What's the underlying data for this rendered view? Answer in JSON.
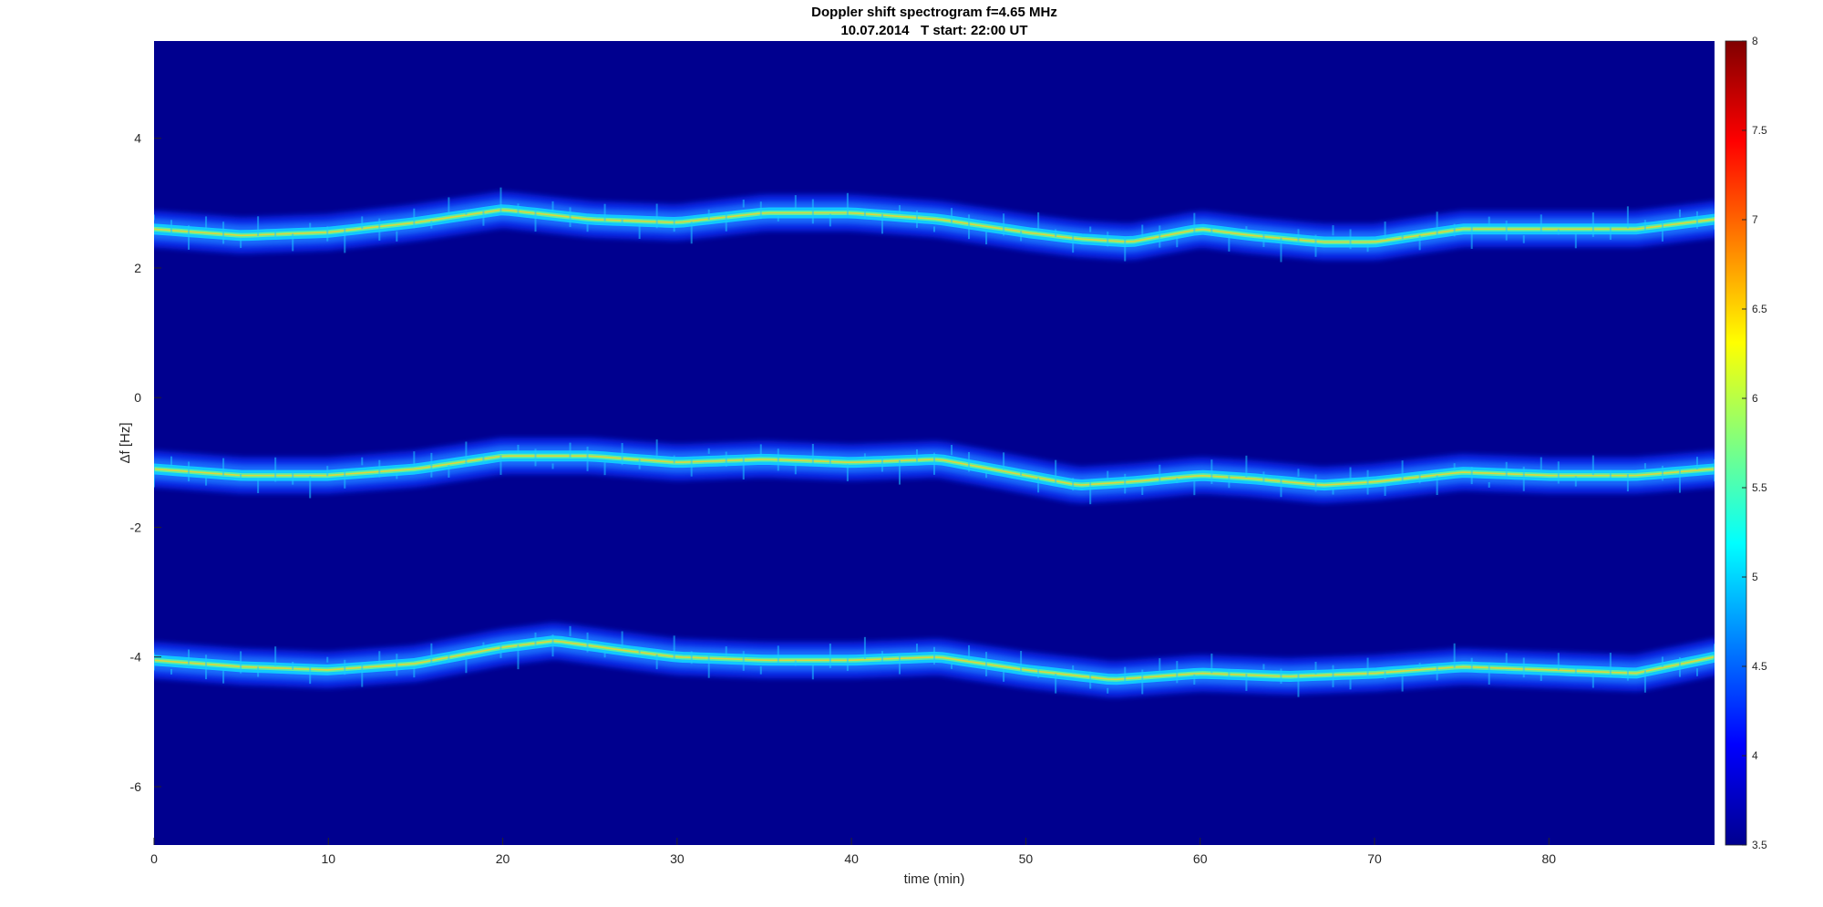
{
  "chart_data": {
    "type": "heatmap",
    "title": "Doppler shift spectrogram f=4.65 MHz",
    "subtitle": "10.07.2014   T start: 22:00 UT",
    "xlabel": "time (min)",
    "ylabel": "Δf [Hz]",
    "xlim": [
      0,
      89.5
    ],
    "ylim": [
      -6.9,
      5.5
    ],
    "x_ticks": [
      0,
      10,
      20,
      30,
      40,
      50,
      60,
      70,
      80
    ],
    "y_ticks": [
      4,
      2,
      0,
      -2,
      -4,
      -6
    ],
    "colorbar": {
      "colormap": "jet",
      "range": [
        3.5,
        8
      ],
      "ticks": [
        "3.5",
        "4",
        "4.5",
        "5",
        "5.5",
        "6",
        "6.5",
        "7",
        "7.5",
        "8"
      ],
      "background": "#00008f"
    },
    "grid": false,
    "legend": "none",
    "series": [
      {
        "x": [
          0,
          5,
          10,
          15,
          20,
          25,
          30,
          35,
          40,
          45,
          50,
          53,
          56,
          60,
          63,
          67,
          70,
          75,
          80,
          85,
          89.5
        ],
        "y": [
          2.6,
          2.5,
          2.55,
          2.7,
          2.9,
          2.75,
          2.7,
          2.85,
          2.85,
          2.75,
          2.55,
          2.45,
          2.4,
          2.6,
          2.5,
          2.4,
          2.4,
          2.6,
          2.6,
          2.6,
          2.75
        ]
      },
      {
        "x": [
          0,
          5,
          10,
          15,
          20,
          25,
          30,
          35,
          40,
          45,
          50,
          53,
          56,
          60,
          63,
          67,
          70,
          75,
          80,
          85,
          89.5
        ],
        "y": [
          -1.1,
          -1.2,
          -1.2,
          -1.1,
          -0.9,
          -0.9,
          -1.0,
          -0.95,
          -1.0,
          -0.95,
          -1.2,
          -1.35,
          -1.3,
          -1.2,
          -1.25,
          -1.35,
          -1.3,
          -1.15,
          -1.2,
          -1.2,
          -1.1
        ]
      },
      {
        "x": [
          0,
          5,
          10,
          15,
          20,
          23,
          27,
          30,
          35,
          40,
          45,
          50,
          55,
          60,
          65,
          70,
          75,
          80,
          85,
          89.5
        ],
        "y": [
          -4.05,
          -4.15,
          -4.2,
          -4.1,
          -3.85,
          -3.75,
          -3.9,
          -4.0,
          -4.05,
          -4.05,
          -4.0,
          -4.2,
          -4.35,
          -4.25,
          -4.3,
          -4.25,
          -4.15,
          -4.2,
          -4.25,
          -4.0
        ]
      }
    ]
  }
}
